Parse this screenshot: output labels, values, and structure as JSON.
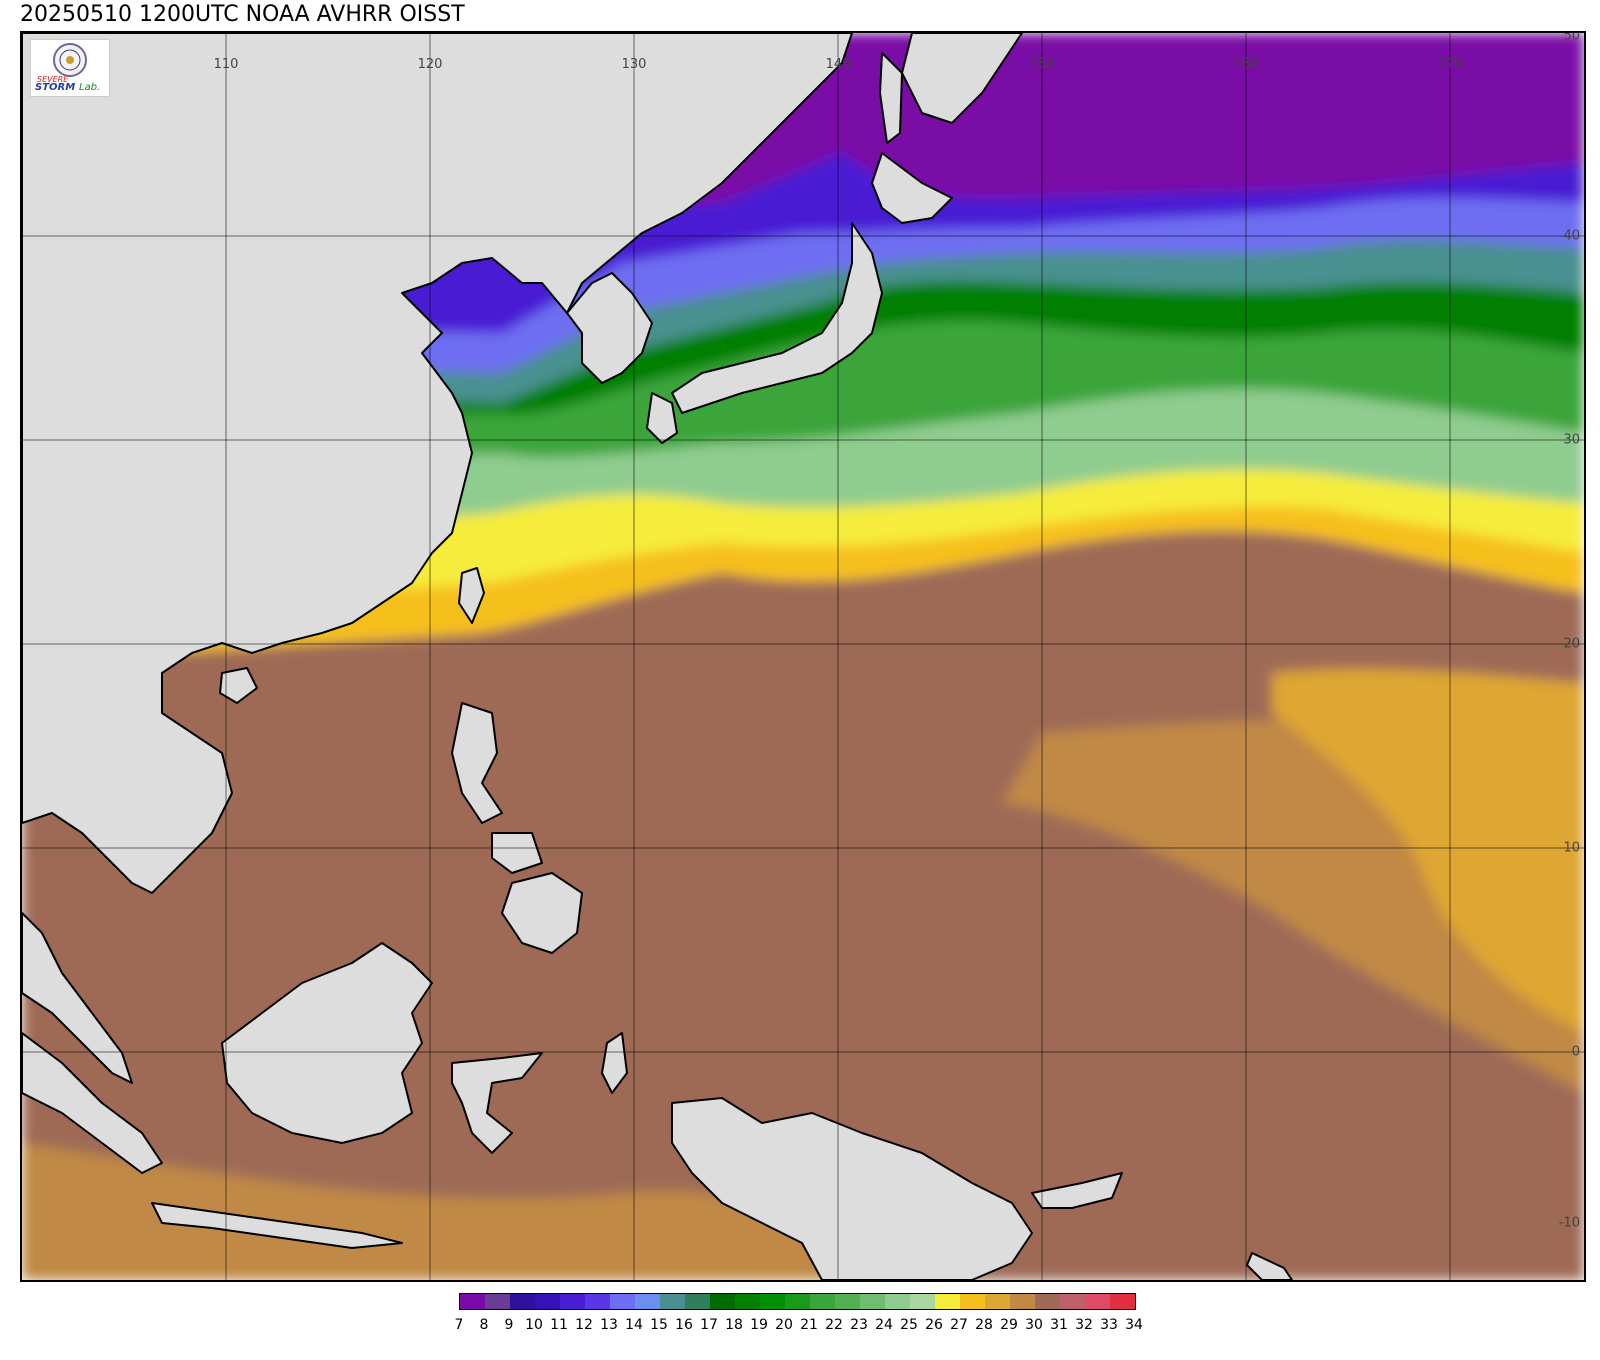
{
  "title": "20250510 1200UTC NOAA AVHRR OISST",
  "logo": {
    "name": "severe-storm-lab-logo",
    "text_main": "SEVERE",
    "text_sub": "STORM",
    "text_lab": "Lab."
  },
  "grid": {
    "longitudes": [
      "110",
      "120",
      "130",
      "140",
      "150",
      "160",
      "170"
    ],
    "latitudes": [
      "50",
      "40",
      "30",
      "20",
      "10",
      "0",
      "-10"
    ]
  },
  "colors": {
    "land": "#dddddd",
    "coast": "#000000",
    "grid": "#000000"
  },
  "legend": {
    "ticks": [
      "7",
      "8",
      "9",
      "10",
      "11",
      "12",
      "13",
      "14",
      "15",
      "16",
      "17",
      "18",
      "19",
      "20",
      "21",
      "22",
      "23",
      "24",
      "25",
      "26",
      "27",
      "28",
      "29",
      "30",
      "31",
      "32",
      "33",
      "34"
    ],
    "colors": [
      "#7a0aa6",
      "#6a3c96",
      "#30119e",
      "#3412b8",
      "#4a1ed4",
      "#5a36e6",
      "#6e6ef2",
      "#6b8ff0",
      "#4a9090",
      "#2f7f5a",
      "#006b00",
      "#007f00",
      "#009100",
      "#1a9a1a",
      "#3aa53a",
      "#52b052",
      "#6fbd6f",
      "#8fcc8f",
      "#aad6a2",
      "#f5ec3a",
      "#f6c01c",
      "#dea632",
      "#c08944",
      "#9e6b57",
      "#c06068",
      "#e24a6a",
      "#e03040"
    ]
  }
}
